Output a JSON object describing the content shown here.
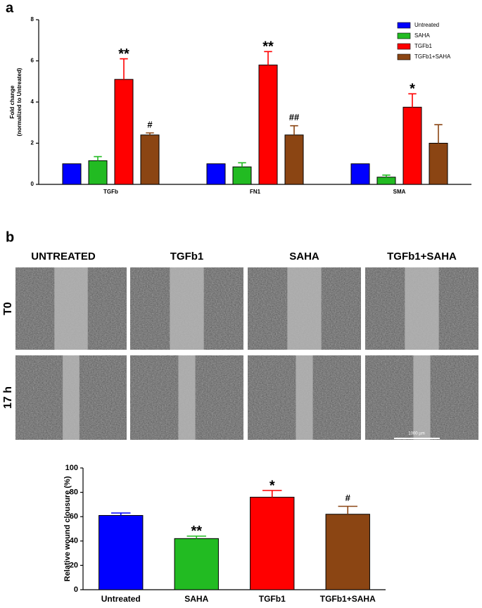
{
  "panel_labels": [
    "a",
    "b"
  ],
  "image_panel": {
    "columns": [
      "UNTREATED",
      "TGFb1",
      "SAHA",
      "TGFb1+SAHA"
    ],
    "rows": [
      "T0",
      "17 h"
    ],
    "scale_bar": "1000 µm"
  },
  "chart_data": [
    {
      "type": "grouped_bar",
      "ylabel": [
        "Fold change",
        "(normalized to Untreated)"
      ],
      "categories": [
        "TGFb",
        "FN1",
        "SMA"
      ],
      "series": [
        {
          "name": "Untreated",
          "color": "#0000ff",
          "values": [
            1,
            1,
            1
          ]
        },
        {
          "name": "SAHA",
          "color": "#22bb22",
          "values": [
            1.15,
            0.85,
            0.35
          ],
          "errors": [
            0.2,
            0.2,
            0.1
          ]
        },
        {
          "name": "TGFb1",
          "color": "#ff0000",
          "values": [
            5.1,
            5.8,
            3.75
          ],
          "errors": [
            1.0,
            0.65,
            0.65
          ],
          "annotations": [
            "**",
            "**",
            "*"
          ]
        },
        {
          "name": "TGFb1+SAHA",
          "color": "#8b4513",
          "values": [
            2.4,
            2.4,
            2.0
          ],
          "errors": [
            0.1,
            0.45,
            0.9
          ],
          "annotations": [
            "#",
            "##",
            null
          ]
        }
      ],
      "ylim": [
        0,
        8
      ],
      "yticks": [
        0,
        2,
        4,
        6,
        8
      ],
      "legend": "upper right"
    },
    {
      "type": "bar",
      "ylabel": "Relative wound clousure (%)",
      "categories": [
        "Untreated",
        "SAHA",
        "TGFb1",
        "TGFb1+SAHA"
      ],
      "values": [
        61,
        42,
        76,
        62
      ],
      "errors": [
        2,
        2,
        5.5,
        6.5
      ],
      "annotations": [
        null,
        "**",
        "*",
        "#"
      ],
      "colors": [
        "#0000ff",
        "#22bb22",
        "#ff0000",
        "#8b4513"
      ],
      "ylim": [
        0,
        100
      ],
      "yticks": [
        0,
        20,
        40,
        60,
        80,
        100
      ]
    }
  ]
}
